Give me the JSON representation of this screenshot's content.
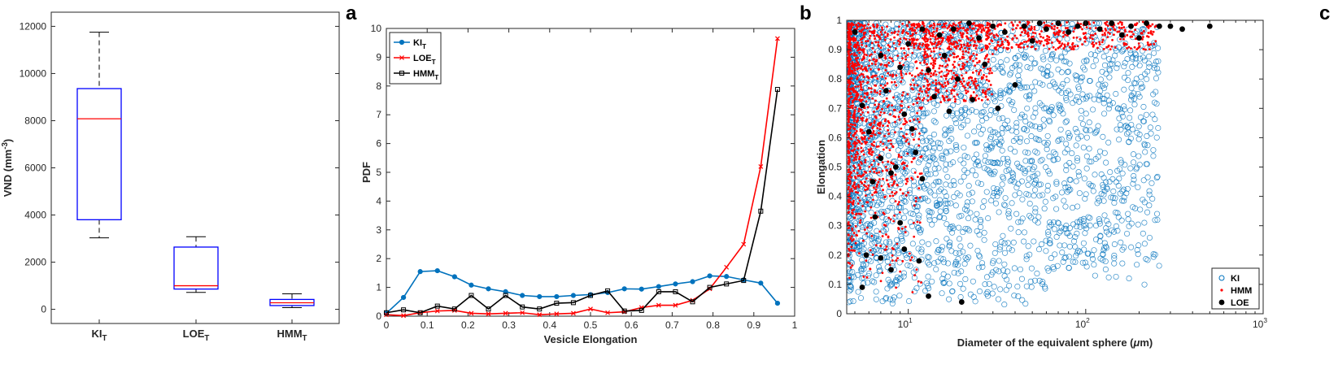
{
  "panel_letters": {
    "a": "a",
    "b": "b",
    "c": "c"
  },
  "colors": {
    "blue": "#0072BD",
    "red": "#FF0000",
    "black": "#000000",
    "box_blue": "#0000FF"
  },
  "chart_data": [
    {
      "type": "box",
      "ylabel": "VND (mm",
      "ylabel_sup": "-3",
      "ylabel_tail": ")",
      "ylim": [
        -600,
        12600
      ],
      "yticks": [
        0,
        2000,
        4000,
        6000,
        8000,
        10000,
        12000
      ],
      "categories": [
        {
          "name": "KI",
          "sub": "T"
        },
        {
          "name": "LOE",
          "sub": "T"
        },
        {
          "name": "HMM",
          "sub": "T"
        }
      ],
      "boxes": [
        {
          "min": 3030,
          "q1": 3800,
          "median": 8080,
          "q3": 9360,
          "max": 11750
        },
        {
          "min": 720,
          "q1": 860,
          "median": 1000,
          "q3": 2640,
          "max": 3080
        },
        {
          "min": 70,
          "q1": 160,
          "median": 280,
          "q3": 420,
          "max": 660
        }
      ]
    },
    {
      "type": "line",
      "xlabel": "Vesicle Elongation",
      "ylabel": "PDF",
      "xlim": [
        0,
        1
      ],
      "ylim": [
        0,
        10
      ],
      "xticks": [
        0,
        0.1,
        0.2,
        0.3,
        0.4,
        0.5,
        0.6,
        0.7,
        0.8,
        0.9,
        1
      ],
      "yticks": [
        0,
        1,
        2,
        3,
        4,
        5,
        6,
        7,
        8,
        9,
        10
      ],
      "legend_position": "top-left",
      "series": [
        {
          "name": "KI",
          "sub": "T",
          "color": "#0072BD",
          "marker": "dot",
          "x": [
            0,
            0.042,
            0.083,
            0.125,
            0.167,
            0.208,
            0.25,
            0.292,
            0.333,
            0.375,
            0.417,
            0.458,
            0.5,
            0.542,
            0.583,
            0.625,
            0.667,
            0.708,
            0.75,
            0.792,
            0.833,
            0.875,
            0.917,
            0.958
          ],
          "y": [
            0.1,
            0.65,
            1.55,
            1.58,
            1.37,
            1.08,
            0.95,
            0.85,
            0.72,
            0.68,
            0.68,
            0.72,
            0.75,
            0.82,
            0.95,
            0.94,
            1.03,
            1.12,
            1.2,
            1.4,
            1.38,
            1.26,
            1.15,
            0.45
          ]
        },
        {
          "name": "LOE",
          "sub": "T",
          "color": "#FF0000",
          "marker": "x",
          "x": [
            0,
            0.042,
            0.083,
            0.125,
            0.167,
            0.208,
            0.25,
            0.292,
            0.333,
            0.375,
            0.417,
            0.458,
            0.5,
            0.542,
            0.583,
            0.625,
            0.667,
            0.708,
            0.75,
            0.792,
            0.833,
            0.875,
            0.917,
            0.958
          ],
          "y": [
            0.05,
            0.02,
            0.12,
            0.18,
            0.2,
            0.1,
            0.08,
            0.1,
            0.12,
            0.05,
            0.08,
            0.1,
            0.25,
            0.12,
            0.15,
            0.3,
            0.38,
            0.38,
            0.55,
            0.95,
            1.7,
            2.5,
            5.2,
            9.65
          ]
        },
        {
          "name": "HMM",
          "sub": "T",
          "color": "#000000",
          "marker": "square",
          "x": [
            0,
            0.042,
            0.083,
            0.125,
            0.167,
            0.208,
            0.25,
            0.292,
            0.333,
            0.375,
            0.417,
            0.458,
            0.5,
            0.542,
            0.583,
            0.625,
            0.667,
            0.708,
            0.75,
            0.792,
            0.833,
            0.875,
            0.917,
            0.958
          ],
          "y": [
            0.12,
            0.22,
            0.12,
            0.35,
            0.25,
            0.72,
            0.25,
            0.72,
            0.32,
            0.25,
            0.45,
            0.47,
            0.72,
            0.88,
            0.18,
            0.2,
            0.85,
            0.85,
            0.5,
            1.0,
            1.12,
            1.24,
            3.65,
            7.88
          ]
        }
      ]
    },
    {
      "type": "scatter",
      "xlabel": "Diameter of the equivalent sphere (",
      "xlabel_mu": "μ",
      "xlabel_tail": "m)",
      "ylabel": "Elongation",
      "xscale": "log",
      "xlim": [
        4.5,
        1000
      ],
      "ylim": [
        0,
        1
      ],
      "xticks": [
        {
          "base": "10",
          "exp": "1",
          "value": 10
        },
        {
          "base": "10",
          "exp": "2",
          "value": 100
        },
        {
          "base": "10",
          "exp": "3",
          "value": 1000
        }
      ],
      "yticks": [
        0,
        0.1,
        0.2,
        0.3,
        0.4,
        0.5,
        0.6,
        0.7,
        0.8,
        0.9,
        1
      ],
      "legend_position": "bottom-right",
      "series": [
        {
          "name": "KI",
          "color": "#0072BD",
          "marker": "open-circle"
        },
        {
          "name": "HMM",
          "color": "#FF0000",
          "marker": "dot-small"
        },
        {
          "name": "LOE",
          "color": "#000000",
          "marker": "filled-circle"
        }
      ],
      "loe_points": [
        [
          5,
          0.96
        ],
        [
          5.5,
          0.71
        ],
        [
          6,
          0.62
        ],
        [
          6.3,
          0.45
        ],
        [
          5.8,
          0.2
        ],
        [
          5.5,
          0.09
        ],
        [
          7,
          0.88
        ],
        [
          7.5,
          0.76
        ],
        [
          7,
          0.53
        ],
        [
          8,
          0.48
        ],
        [
          6.5,
          0.33
        ],
        [
          7,
          0.19
        ],
        [
          8,
          0.15
        ],
        [
          9,
          0.84
        ],
        [
          9.5,
          0.68
        ],
        [
          8.5,
          0.5
        ],
        [
          9,
          0.31
        ],
        [
          10,
          0.92
        ],
        [
          10.5,
          0.63
        ],
        [
          11,
          0.55
        ],
        [
          9.5,
          0.22
        ],
        [
          11.5,
          0.18
        ],
        [
          12,
          0.97
        ],
        [
          13,
          0.83
        ],
        [
          12,
          0.46
        ],
        [
          13,
          0.06
        ],
        [
          14,
          0.74
        ],
        [
          15,
          0.95
        ],
        [
          16,
          0.88
        ],
        [
          17,
          0.69
        ],
        [
          18,
          0.97
        ],
        [
          19,
          0.8
        ],
        [
          20,
          0.04
        ],
        [
          22,
          0.99
        ],
        [
          23,
          0.73
        ],
        [
          25,
          0.94
        ],
        [
          27,
          0.85
        ],
        [
          30,
          0.98
        ],
        [
          32,
          0.7
        ],
        [
          35,
          0.96
        ],
        [
          40,
          0.78
        ],
        [
          45,
          0.98
        ],
        [
          50,
          0.93
        ],
        [
          55,
          0.99
        ],
        [
          60,
          0.97
        ],
        [
          70,
          0.99
        ],
        [
          80,
          0.96
        ],
        [
          90,
          0.98
        ],
        [
          100,
          0.99
        ],
        [
          120,
          0.97
        ],
        [
          140,
          0.99
        ],
        [
          160,
          0.95
        ],
        [
          180,
          0.98
        ],
        [
          200,
          0.94
        ],
        [
          220,
          0.99
        ],
        [
          260,
          0.98
        ],
        [
          300,
          0.98
        ],
        [
          350,
          0.97
        ],
        [
          500,
          0.98
        ]
      ]
    }
  ]
}
